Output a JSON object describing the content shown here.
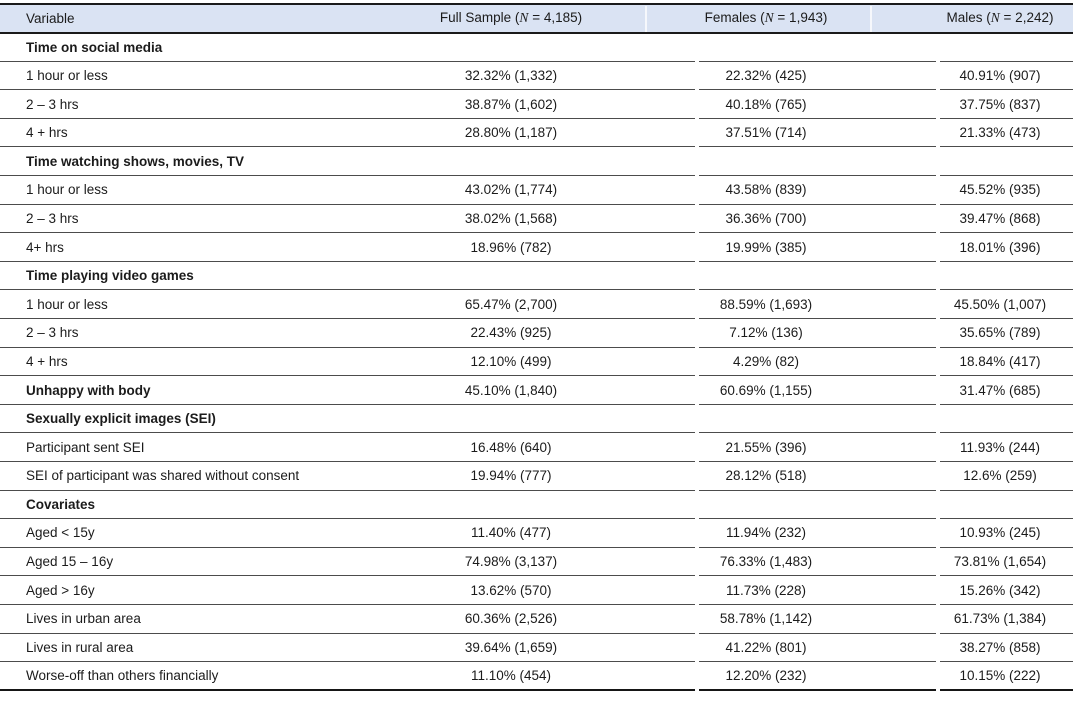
{
  "colors": {
    "header_bg": "#dae3f3",
    "rule_heavy": "#1a1a1a",
    "rule_light": "#4c4c4c",
    "text": "#1b1b1b"
  },
  "table": {
    "columns": [
      {
        "label": "Variable"
      },
      {
        "pre": "Full Sample (",
        "n": "N",
        "post": " = 4,185)"
      },
      {
        "pre": "Females (",
        "n": "N",
        "post": " = 1,943)"
      },
      {
        "pre": "Males (",
        "n": "N",
        "post": " = 2,242)"
      }
    ],
    "rows": [
      {
        "label": "Time on social media",
        "bold": true,
        "values": [
          "",
          "",
          ""
        ]
      },
      {
        "label": "1 hour or less",
        "bold": false,
        "values": [
          "32.32% (1,332)",
          "22.32% (425)",
          "40.91% (907)"
        ]
      },
      {
        "label": "2 – 3 hrs",
        "bold": false,
        "values": [
          "38.87% (1,602)",
          "40.18% (765)",
          "37.75% (837)"
        ]
      },
      {
        "label": "4 + hrs",
        "bold": false,
        "values": [
          "28.80% (1,187)",
          "37.51% (714)",
          "21.33% (473)"
        ]
      },
      {
        "label": "Time watching shows, movies, TV",
        "bold": true,
        "values": [
          "",
          "",
          ""
        ]
      },
      {
        "label": "1 hour or less",
        "bold": false,
        "values": [
          "43.02% (1,774)",
          "43.58% (839)",
          "45.52% (935)"
        ]
      },
      {
        "label": "2 – 3 hrs",
        "bold": false,
        "values": [
          "38.02% (1,568)",
          "36.36% (700)",
          "39.47% (868)"
        ]
      },
      {
        "label": "4+ hrs",
        "bold": false,
        "values": [
          "18.96% (782)",
          "19.99% (385)",
          "18.01% (396)"
        ]
      },
      {
        "label": "Time playing video games",
        "bold": true,
        "values": [
          "",
          "",
          ""
        ]
      },
      {
        "label": "1 hour or less",
        "bold": false,
        "values": [
          "65.47% (2,700)",
          "88.59% (1,693)",
          "45.50% (1,007)"
        ]
      },
      {
        "label": "2 – 3 hrs",
        "bold": false,
        "values": [
          "22.43% (925)",
          "7.12% (136)",
          "35.65% (789)"
        ]
      },
      {
        "label": "4 + hrs",
        "bold": false,
        "values": [
          "12.10% (499)",
          "4.29% (82)",
          "18.84% (417)"
        ]
      },
      {
        "label": "Unhappy with body",
        "bold": true,
        "values": [
          "45.10% (1,840)",
          "60.69% (1,155)",
          "31.47% (685)"
        ]
      },
      {
        "label": "Sexually explicit images (SEI)",
        "bold": true,
        "values": [
          "",
          "",
          ""
        ]
      },
      {
        "label": "Participant sent SEI",
        "bold": false,
        "values": [
          "16.48% (640)",
          "21.55% (396)",
          "11.93% (244)"
        ]
      },
      {
        "label": "SEI of participant was shared without consent",
        "bold": false,
        "values": [
          "19.94% (777)",
          "28.12% (518)",
          "12.6% (259)"
        ]
      },
      {
        "label": "Covariates",
        "bold": true,
        "values": [
          "",
          "",
          ""
        ]
      },
      {
        "label": "Aged < 15y",
        "bold": false,
        "values": [
          "11.40% (477)",
          "11.94% (232)",
          "10.93% (245)"
        ]
      },
      {
        "label": "Aged 15 – 16y",
        "bold": false,
        "values": [
          "74.98% (3,137)",
          "76.33% (1,483)",
          "73.81% (1,654)"
        ]
      },
      {
        "label": "Aged > 16y",
        "bold": false,
        "values": [
          "13.62% (570)",
          "11.73% (228)",
          "15.26% (342)"
        ]
      },
      {
        "label": "Lives in urban area",
        "bold": false,
        "values": [
          "60.36% (2,526)",
          "58.78% (1,142)",
          "61.73% (1,384)"
        ]
      },
      {
        "label": "Lives in rural area",
        "bold": false,
        "values": [
          "39.64% (1,659)",
          "41.22% (801)",
          "38.27% (858)"
        ]
      },
      {
        "label": "Worse-off than others financially",
        "bold": false,
        "values": [
          "11.10% (454)",
          "12.20% (232)",
          "10.15% (222)"
        ]
      }
    ]
  }
}
